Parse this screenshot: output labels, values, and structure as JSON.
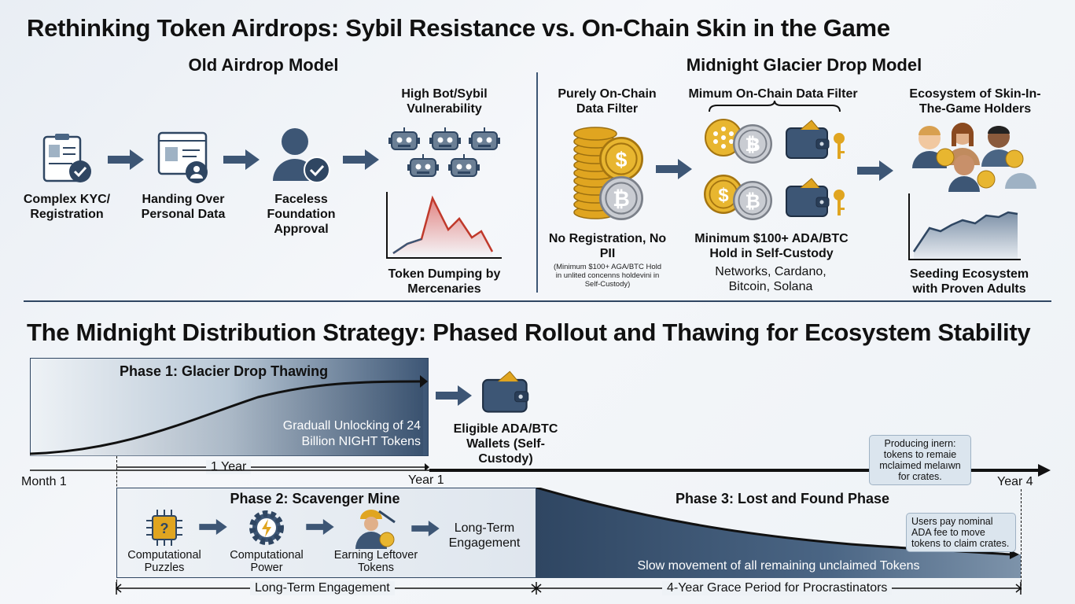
{
  "title": "Rethinking Token Airdrops: Sybil Resistance vs. On-Chain Skin in the Game",
  "old_model": {
    "heading": "Old Airdrop Model",
    "steps": [
      {
        "label": "Complex KYC/ Registration",
        "icon": "kyc-clipboard-icon"
      },
      {
        "label": "Handing Over Personal Data",
        "icon": "id-card-icon"
      },
      {
        "label": "Faceless Foundation Approval",
        "icon": "faceless-person-icon"
      }
    ],
    "bots_label": "High Bot/Sybil Vulnerability",
    "dump_label": "Token Dumping by Mercenaries"
  },
  "new_model": {
    "heading": "Midnight Glacier Drop Model",
    "filter_label": "Purely On-Chain Data Filter",
    "no_reg_label": "No Registration, No PII",
    "no_reg_note": "(Minimum $100+ AGA/BTC Hold in unlited concenns holdevini in Self-Custody)",
    "min_filter_label": "Mimum On-Chain Data Filter",
    "min_hold_label": "Minimum $100+ ADA/BTC Hold in Self-Custody",
    "networks_label": "Networks, Cardano, Bitcoin, Solana",
    "ecosystem_label": "Ecosystem of Skin-In-The-Game Holders",
    "seeding_label": "Seeding Ecosystem with Proven Adults"
  },
  "strategy": {
    "title": "The Midnight Distribution Strategy: Phased Rollout and Thawing for Ecosystem Stability",
    "phase1": {
      "title": "Phase 1: Glacier Drop Thawing",
      "text": "Graduall Unlocking of 24 Billion NIGHT Tokens",
      "duration": "1 Year"
    },
    "wallets_label": "Eligible ADA/BTC Wallets (Self-Custody)",
    "timeline": {
      "start": "Month 1",
      "mid": "Year 1",
      "end": "Year 4"
    },
    "callout_top": "Producing inern: tokens to remaie mclaimed melaıwn for crates.",
    "phase2": {
      "title": "Phase 2: Scavenger Mine",
      "steps": [
        "Computational Puzzles",
        "Computational Power",
        "Earning Leftover Tokens"
      ],
      "result": "Long-Term Engagement"
    },
    "phase3": {
      "title": "Phase 3: Lost and Found Phase",
      "text": "Slow movement of all remaining unclaimed Tokens",
      "callout": "Users pay nominal ADA fee to move tokens to claim crates."
    },
    "bracket_left": "Long-Term Engagement",
    "bracket_right": "4-Year Grace Period for Procrastinators"
  },
  "colors": {
    "navy": "#2f4662",
    "steel": "#4a6584",
    "gold": "#e0a520",
    "red": "#d9534f"
  }
}
